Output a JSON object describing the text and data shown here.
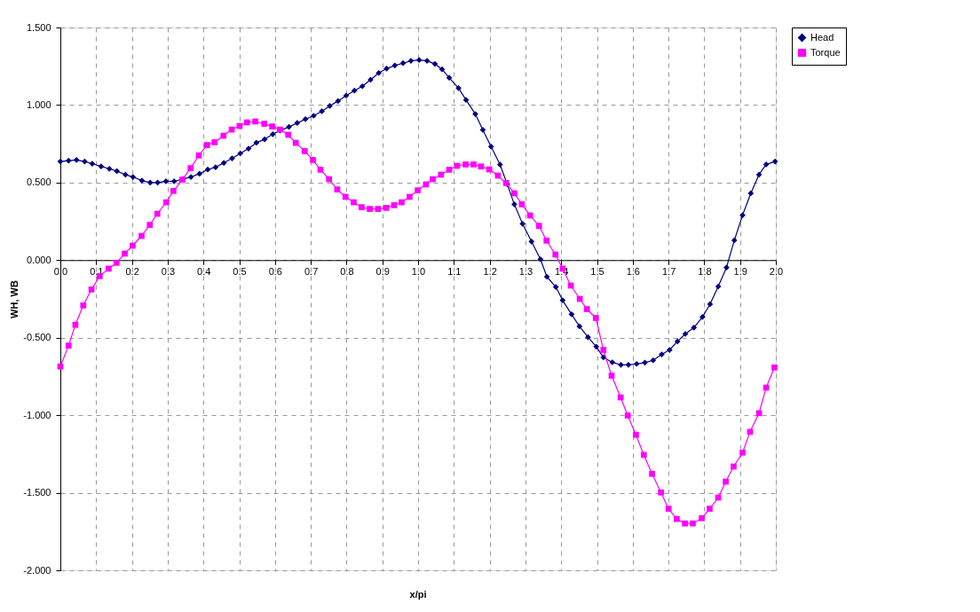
{
  "chart_data": {
    "type": "line",
    "xlabel": "x/pi",
    "ylabel": "WH, WB",
    "xlim": [
      0,
      2
    ],
    "ylim": [
      -2,
      1.5
    ],
    "xticks": [
      {
        "value": 0,
        "label": "0.0"
      },
      0.1,
      0.2,
      0.3,
      0.4,
      0.5,
      0.6,
      0.7,
      0.8,
      0.9,
      {
        "value": 1,
        "label": "1.0"
      },
      1.1,
      1.2,
      1.3,
      1.4,
      1.5,
      1.6,
      1.7,
      1.8,
      1.9,
      {
        "value": 2,
        "label": "2.0"
      }
    ],
    "yticks": [
      {
        "value": -2,
        "label": "-2.000"
      },
      {
        "value": -1.5,
        "label": "-1.500"
      },
      {
        "value": -1,
        "label": "-1.000"
      },
      {
        "value": -0.5,
        "label": "-0.500"
      },
      {
        "value": 0,
        "label": "0.000"
      },
      {
        "value": 0.5,
        "label": "0.500"
      },
      {
        "value": 1,
        "label": "1.000"
      },
      {
        "value": 1.5,
        "label": "1.500"
      }
    ],
    "grid": true,
    "legend": "right",
    "line_style": "solid",
    "series": [
      {
        "name": "Head",
        "color": "#000080",
        "marker": "diamond",
        "x": [
          0,
          0.023,
          0.045,
          0.068,
          0.089,
          0.114,
          0.137,
          0.158,
          0.182,
          0.203,
          0.228,
          0.251,
          0.272,
          0.295,
          0.318,
          0.343,
          0.365,
          0.389,
          0.412,
          0.434,
          0.457,
          0.48,
          0.503,
          0.526,
          0.548,
          0.571,
          0.594,
          0.614,
          0.639,
          0.662,
          0.685,
          0.708,
          0.731,
          0.753,
          0.776,
          0.799,
          0.822,
          0.844,
          0.867,
          0.89,
          0.912,
          0.935,
          0.958,
          0.98,
          1.003,
          1.025,
          1.047,
          1.067,
          1.087,
          1.113,
          1.134,
          1.16,
          1.181,
          1.204,
          1.229,
          1.249,
          1.269,
          1.292,
          1.317,
          1.342,
          1.36,
          1.385,
          1.404,
          1.429,
          1.451,
          1.475,
          1.498,
          1.518,
          1.543,
          1.567,
          1.588,
          1.611,
          1.634,
          1.657,
          1.681,
          1.703,
          1.725,
          1.747,
          1.771,
          1.795,
          1.816,
          1.839,
          1.862,
          1.884,
          1.907,
          1.93,
          1.953,
          1.973,
          1.998
        ],
        "values": [
          0.636,
          0.641,
          0.646,
          0.636,
          0.622,
          0.604,
          0.589,
          0.574,
          0.551,
          0.536,
          0.513,
          0.5,
          0.5,
          0.508,
          0.508,
          0.523,
          0.536,
          0.557,
          0.584,
          0.599,
          0.627,
          0.656,
          0.688,
          0.719,
          0.757,
          0.779,
          0.812,
          0.836,
          0.859,
          0.884,
          0.909,
          0.931,
          0.96,
          0.994,
          1.026,
          1.061,
          1.093,
          1.121,
          1.163,
          1.207,
          1.235,
          1.255,
          1.27,
          1.285,
          1.29,
          1.285,
          1.265,
          1.23,
          1.176,
          1.109,
          1.033,
          0.942,
          0.84,
          0.732,
          0.616,
          0.49,
          0.36,
          0.234,
          0.12,
          0.006,
          -0.107,
          -0.173,
          -0.259,
          -0.349,
          -0.427,
          -0.497,
          -0.558,
          -0.627,
          -0.659,
          -0.675,
          -0.675,
          -0.669,
          -0.661,
          -0.646,
          -0.608,
          -0.579,
          -0.524,
          -0.476,
          -0.435,
          -0.366,
          -0.284,
          -0.17,
          -0.048,
          0.128,
          0.29,
          0.431,
          0.551,
          0.617,
          0.636
        ]
      },
      {
        "name": "Torque",
        "color": "#ff00ff",
        "marker": "square",
        "x": [
          0,
          0.023,
          0.042,
          0.064,
          0.087,
          0.11,
          0.135,
          0.157,
          0.18,
          0.202,
          0.227,
          0.25,
          0.271,
          0.296,
          0.316,
          0.341,
          0.364,
          0.387,
          0.41,
          0.431,
          0.456,
          0.479,
          0.501,
          0.522,
          0.545,
          0.57,
          0.592,
          0.614,
          0.637,
          0.658,
          0.683,
          0.706,
          0.727,
          0.751,
          0.774,
          0.797,
          0.82,
          0.842,
          0.865,
          0.888,
          0.911,
          0.933,
          0.954,
          0.976,
          0.999,
          1.022,
          1.041,
          1.064,
          1.087,
          1.109,
          1.133,
          1.155,
          1.176,
          1.199,
          1.223,
          1.246,
          1.269,
          1.29,
          1.313,
          1.338,
          1.359,
          1.384,
          1.404,
          1.427,
          1.452,
          1.472,
          1.497,
          1.518,
          1.541,
          1.566,
          1.586,
          1.609,
          1.631,
          1.654,
          1.679,
          1.7,
          1.723,
          1.746,
          1.768,
          1.793,
          1.815,
          1.839,
          1.86,
          1.882,
          1.907,
          1.928,
          1.953,
          1.973,
          1.996
        ],
        "values": [
          -0.686,
          -0.551,
          -0.417,
          -0.292,
          -0.189,
          -0.103,
          -0.055,
          -0.017,
          0.042,
          0.093,
          0.156,
          0.227,
          0.299,
          0.373,
          0.446,
          0.519,
          0.593,
          0.675,
          0.742,
          0.76,
          0.802,
          0.842,
          0.865,
          0.888,
          0.894,
          0.879,
          0.862,
          0.842,
          0.808,
          0.756,
          0.703,
          0.646,
          0.583,
          0.522,
          0.456,
          0.408,
          0.373,
          0.341,
          0.33,
          0.33,
          0.337,
          0.354,
          0.373,
          0.408,
          0.45,
          0.488,
          0.522,
          0.551,
          0.583,
          0.608,
          0.617,
          0.617,
          0.604,
          0.585,
          0.545,
          0.497,
          0.431,
          0.36,
          0.288,
          0.221,
          0.126,
          0.036,
          -0.055,
          -0.164,
          -0.25,
          -0.316,
          -0.373,
          -0.579,
          -0.745,
          -0.885,
          -1.002,
          -1.126,
          -1.256,
          -1.378,
          -1.498,
          -1.603,
          -1.669,
          -1.698,
          -1.698,
          -1.664,
          -1.603,
          -1.531,
          -1.428,
          -1.331,
          -1.241,
          -1.107,
          -0.987,
          -0.822,
          -0.692
        ]
      }
    ]
  }
}
